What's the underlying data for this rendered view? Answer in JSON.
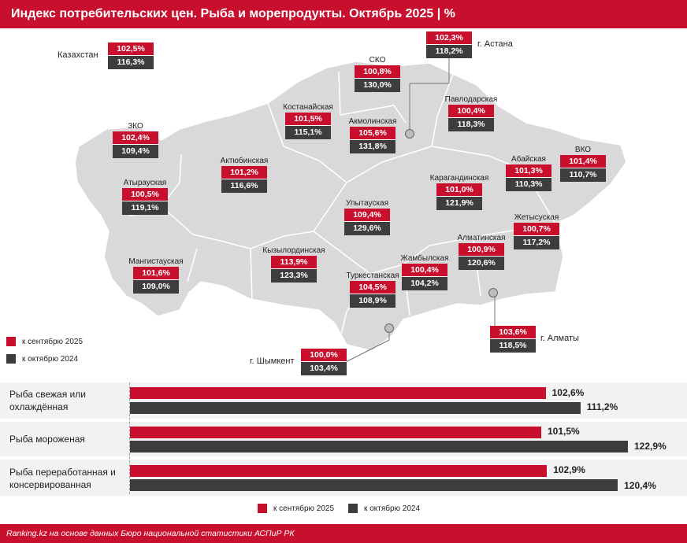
{
  "header": {
    "title": "Индекс потребительских цен. Рыба и морепродукты. Октябрь 2025 | %"
  },
  "colors": {
    "accent": "#c8102e",
    "dark": "#3d3d3d",
    "map_fill": "#d9d9d9"
  },
  "chart_data": [
    {
      "type": "map",
      "title": "Индекс потребительских цен. Рыба и морепродукты. Октябрь 2025 | %",
      "legend": [
        "к сентябрю 2025",
        "к октябрю 2024"
      ],
      "regions": [
        {
          "name": "Казахстан",
          "sep2025": "102,5%",
          "oct2024": "116,3%"
        },
        {
          "name": "г. Астана",
          "sep2025": "102,3%",
          "oct2024": "118,2%"
        },
        {
          "name": "СКО",
          "sep2025": "100,8%",
          "oct2024": "130,0%"
        },
        {
          "name": "Костанайская",
          "sep2025": "101,5%",
          "oct2024": "115,1%"
        },
        {
          "name": "Акмолинская",
          "sep2025": "105,6%",
          "oct2024": "131,8%"
        },
        {
          "name": "Павлодарская",
          "sep2025": "100,4%",
          "oct2024": "118,3%"
        },
        {
          "name": "ЗКО",
          "sep2025": "102,4%",
          "oct2024": "109,4%"
        },
        {
          "name": "Актюбинская",
          "sep2025": "101,2%",
          "oct2024": "116,6%"
        },
        {
          "name": "Абайская",
          "sep2025": "101,3%",
          "oct2024": "110,3%"
        },
        {
          "name": "ВКО",
          "sep2025": "101,4%",
          "oct2024": "110,7%"
        },
        {
          "name": "Атырауская",
          "sep2025": "100,5%",
          "oct2024": "119,1%"
        },
        {
          "name": "Карагандинская",
          "sep2025": "101,0%",
          "oct2024": "121,9%"
        },
        {
          "name": "Улытауская",
          "sep2025": "109,4%",
          "oct2024": "129,6%"
        },
        {
          "name": "Жетысуская",
          "sep2025": "100,7%",
          "oct2024": "117,2%"
        },
        {
          "name": "Алматинская",
          "sep2025": "100,9%",
          "oct2024": "120,6%"
        },
        {
          "name": "Кызылординская",
          "sep2025": "113,9%",
          "oct2024": "123,3%"
        },
        {
          "name": "Мангистауская",
          "sep2025": "101,6%",
          "oct2024": "109,0%"
        },
        {
          "name": "Жамбылская",
          "sep2025": "100,4%",
          "oct2024": "104,2%"
        },
        {
          "name": "Туркестанская",
          "sep2025": "104,5%",
          "oct2024": "108,9%"
        },
        {
          "name": "г. Алматы",
          "sep2025": "103,6%",
          "oct2024": "118,5%"
        },
        {
          "name": "г. Шымкент",
          "sep2025": "100,0%",
          "oct2024": "103,4%"
        }
      ]
    },
    {
      "type": "bar",
      "orientation": "horizontal",
      "categories": [
        "Рыба свежая или охлаждённая",
        "Рыба мороженая",
        "Рыба переработанная и консервированная"
      ],
      "series": [
        {
          "name": "к сентябрю 2025",
          "values": [
            102.6,
            101.5,
            102.9
          ],
          "labels": [
            "102,6%",
            "101,5%",
            "102,9%"
          ]
        },
        {
          "name": "к октябрю 2024",
          "values": [
            111.2,
            122.9,
            120.4
          ],
          "labels": [
            "111,2%",
            "122,9%",
            "120,4%"
          ]
        }
      ],
      "xlim": [
        0,
        122.9
      ]
    }
  ],
  "footer": {
    "source": "Ranking.kz на основе данных Бюро национальной статистики АСПиР РК"
  }
}
